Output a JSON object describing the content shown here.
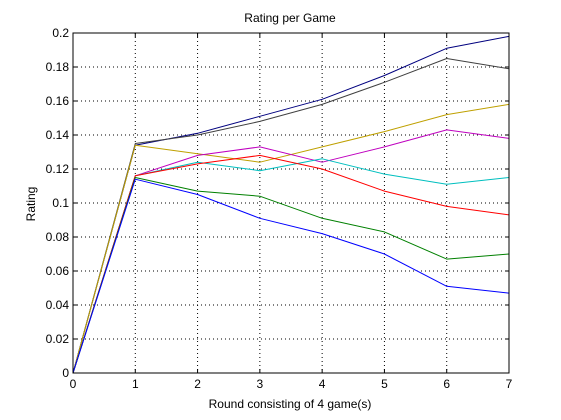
{
  "chart_data": {
    "type": "line",
    "title": "Rating per Game",
    "xlabel": "Round consisting of 4 game(s)",
    "ylabel": "Rating",
    "xlim": [
      0,
      7
    ],
    "ylim": [
      0,
      0.2
    ],
    "x_ticks": [
      "0",
      "1",
      "2",
      "3",
      "4",
      "5",
      "6",
      "7"
    ],
    "y_ticks": [
      "0",
      "0.02",
      "0.04",
      "0.06",
      "0.08",
      "0.1",
      "0.12",
      "0.14",
      "0.16",
      "0.18",
      "0.2"
    ],
    "grid": true,
    "grid_style": "dotted",
    "x": [
      0,
      1,
      2,
      3,
      4,
      5,
      6,
      7
    ],
    "series": [
      {
        "color": "#00007f",
        "values": [
          0,
          0.134,
          0.141,
          0.151,
          0.161,
          0.175,
          0.191,
          0.198
        ]
      },
      {
        "color": "#404040",
        "values": [
          0,
          0.135,
          0.14,
          0.148,
          0.158,
          0.171,
          0.185,
          0.179
        ]
      },
      {
        "color": "#bfa000",
        "values": [
          0,
          0.134,
          0.129,
          0.124,
          0.133,
          0.142,
          0.152,
          0.158
        ]
      },
      {
        "color": "#bf00bf",
        "values": [
          0,
          0.116,
          0.128,
          0.133,
          0.124,
          0.133,
          0.143,
          0.138
        ]
      },
      {
        "color": "#00bfbf",
        "values": [
          0,
          0.116,
          0.124,
          0.119,
          0.126,
          0.117,
          0.111,
          0.115
        ]
      },
      {
        "color": "#ff0000",
        "values": [
          0,
          0.116,
          0.123,
          0.128,
          0.12,
          0.107,
          0.098,
          0.093
        ]
      },
      {
        "color": "#008000",
        "values": [
          0,
          0.115,
          0.107,
          0.104,
          0.091,
          0.083,
          0.067,
          0.07
        ]
      },
      {
        "color": "#0000ff",
        "values": [
          0,
          0.114,
          0.105,
          0.091,
          0.082,
          0.07,
          0.051,
          0.047
        ]
      }
    ]
  }
}
